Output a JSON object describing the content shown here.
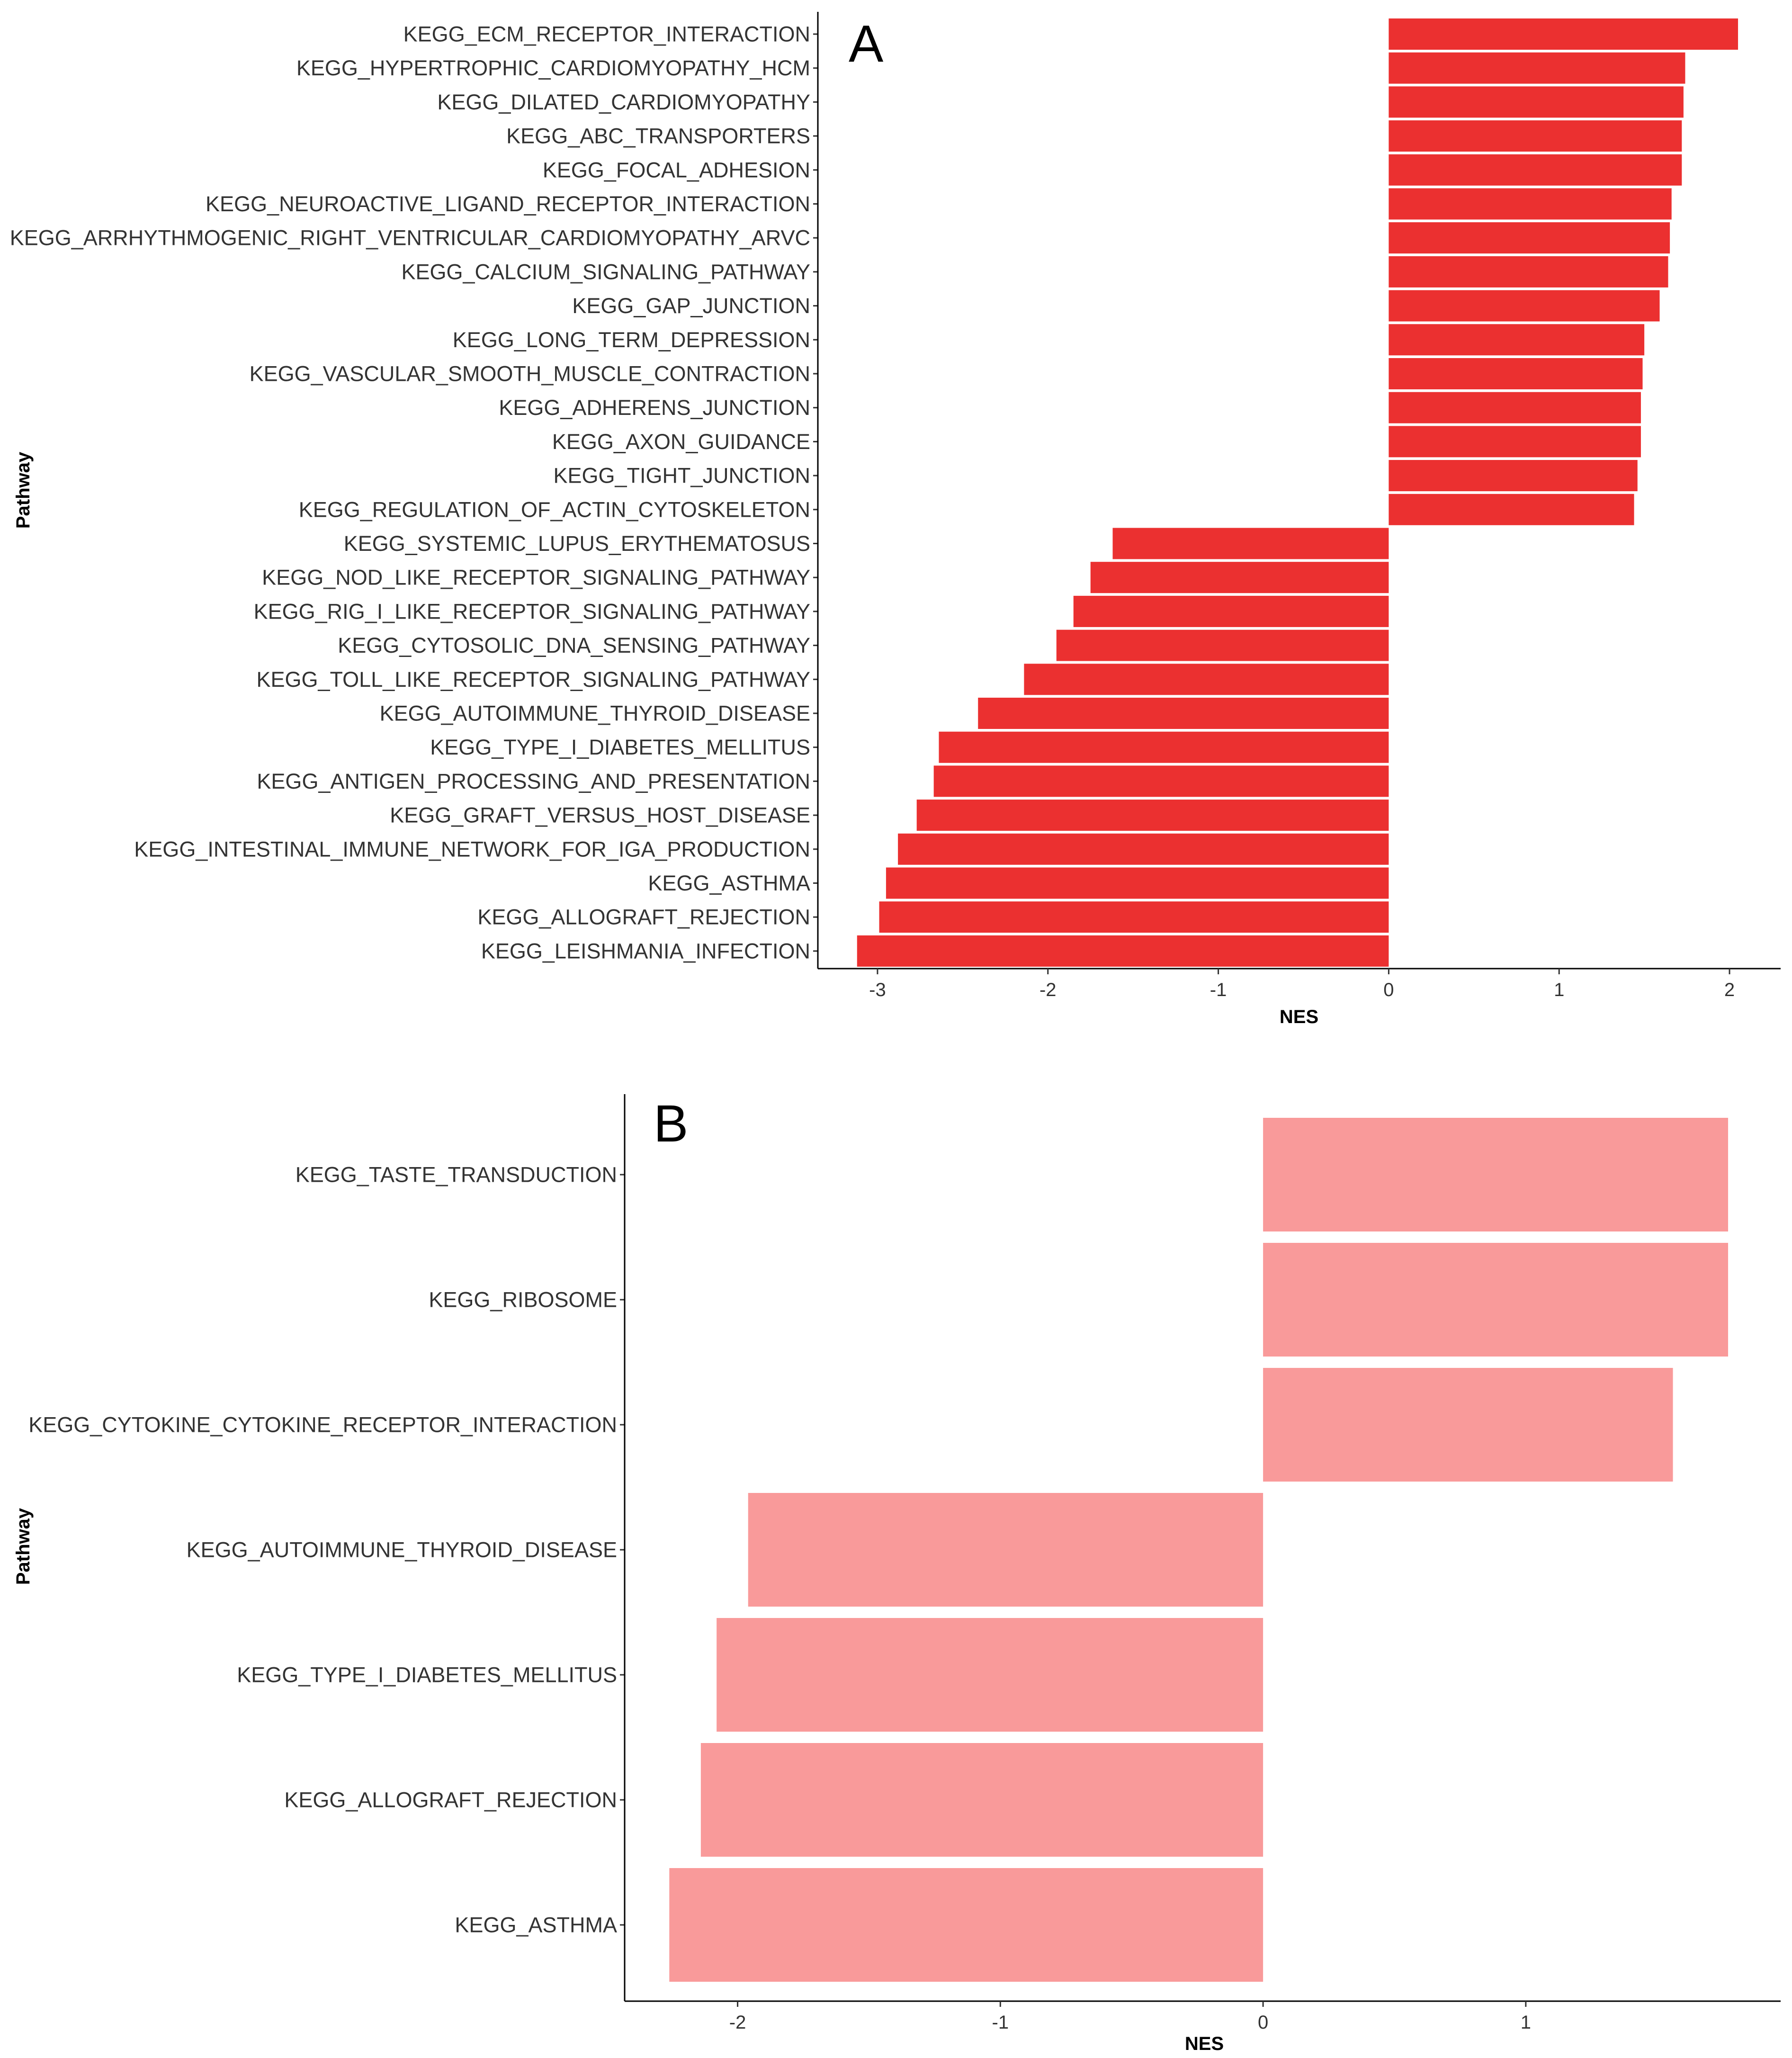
{
  "chart_data": [
    {
      "type": "bar",
      "orientation": "horizontal",
      "panel_label": "A",
      "xlabel": "NES",
      "ylabel": "Pathway",
      "xlim": [
        -3.35,
        2.3
      ],
      "xticks": [
        -3,
        -2,
        -1,
        0,
        1,
        2
      ],
      "bar_color": "#EB3030",
      "categories": [
        "KEGG_ECM_RECEPTOR_INTERACTION",
        "KEGG_HYPERTROPHIC_CARDIOMYOPATHY_HCM",
        "KEGG_DILATED_CARDIOMYOPATHY",
        "KEGG_ABC_TRANSPORTERS",
        "KEGG_FOCAL_ADHESION",
        "KEGG_NEUROACTIVE_LIGAND_RECEPTOR_INTERACTION",
        "KEGG_ARRHYTHMOGENIC_RIGHT_VENTRICULAR_CARDIOMYOPATHY_ARVC",
        "KEGG_CALCIUM_SIGNALING_PATHWAY",
        "KEGG_GAP_JUNCTION",
        "KEGG_LONG_TERM_DEPRESSION",
        "KEGG_VASCULAR_SMOOTH_MUSCLE_CONTRACTION",
        "KEGG_ADHERENS_JUNCTION",
        "KEGG_AXON_GUIDANCE",
        "KEGG_TIGHT_JUNCTION",
        "KEGG_REGULATION_OF_ACTIN_CYTOSKELETON",
        "KEGG_SYSTEMIC_LUPUS_ERYTHEMATOSUS",
        "KEGG_NOD_LIKE_RECEPTOR_SIGNALING_PATHWAY",
        "KEGG_RIG_I_LIKE_RECEPTOR_SIGNALING_PATHWAY",
        "KEGG_CYTOSOLIC_DNA_SENSING_PATHWAY",
        "KEGG_TOLL_LIKE_RECEPTOR_SIGNALING_PATHWAY",
        "KEGG_AUTOIMMUNE_THYROID_DISEASE",
        "KEGG_TYPE_I_DIABETES_MELLITUS",
        "KEGG_ANTIGEN_PROCESSING_AND_PRESENTATION",
        "KEGG_GRAFT_VERSUS_HOST_DISEASE",
        "KEGG_INTESTINAL_IMMUNE_NETWORK_FOR_IGA_PRODUCTION",
        "KEGG_ASTHMA",
        "KEGG_ALLOGRAFT_REJECTION",
        "KEGG_LEISHMANIA_INFECTION"
      ],
      "values": [
        2.05,
        1.74,
        1.73,
        1.72,
        1.72,
        1.66,
        1.65,
        1.64,
        1.59,
        1.5,
        1.49,
        1.48,
        1.48,
        1.46,
        1.44,
        -1.62,
        -1.75,
        -1.85,
        -1.95,
        -2.14,
        -2.41,
        -2.64,
        -2.67,
        -2.77,
        -2.88,
        -2.95,
        -2.99,
        -3.12
      ]
    },
    {
      "type": "bar",
      "orientation": "horizontal",
      "panel_label": "B",
      "xlabel": "NES",
      "ylabel": "Pathway",
      "xlim": [
        -2.43,
        1.97
      ],
      "xticks": [
        -2,
        -1,
        0,
        1
      ],
      "bar_color": "#F99A9A",
      "categories": [
        "KEGG_TASTE_TRANSDUCTION",
        "KEGG_RIBOSOME",
        "KEGG_CYTOKINE_CYTOKINE_RECEPTOR_INTERACTION",
        "KEGG_AUTOIMMUNE_THYROID_DISEASE",
        "KEGG_TYPE_I_DIABETES_MELLITUS",
        "KEGG_ALLOGRAFT_REJECTION",
        "KEGG_ASTHMA"
      ],
      "values": [
        1.77,
        1.77,
        1.56,
        -1.96,
        -2.08,
        -2.14,
        -2.26
      ]
    }
  ]
}
